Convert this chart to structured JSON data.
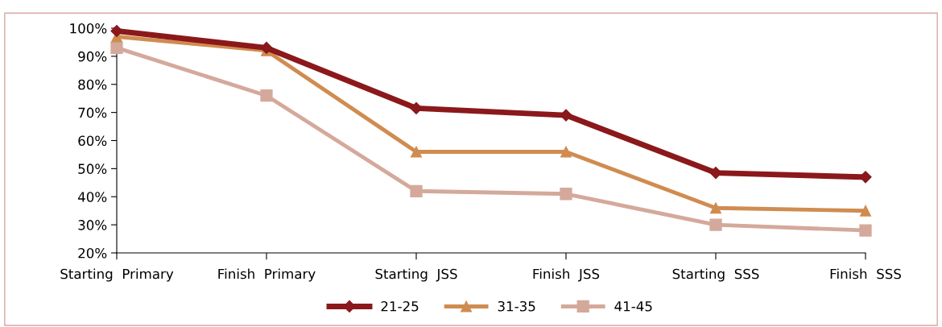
{
  "chart_data": {
    "type": "line",
    "categories": [
      "Starting  Primary",
      "Finish  Primary",
      "Starting  JSS",
      "Finish  JSS",
      "Starting  SSS",
      "Finish  SSS"
    ],
    "series": [
      {
        "name": "21-25",
        "color": "#8b181b",
        "marker": "diamond",
        "values": [
          99,
          93,
          71.5,
          69,
          48.5,
          47
        ]
      },
      {
        "name": "31-35",
        "color": "#d08c50",
        "marker": "triangle",
        "values": [
          97,
          92,
          56,
          56,
          36,
          35
        ]
      },
      {
        "name": "41-45",
        "color": "#d4a99b",
        "marker": "square",
        "values": [
          93,
          76,
          42,
          41,
          30,
          28
        ]
      }
    ],
    "ylim": [
      20,
      100
    ],
    "yticks": [
      {
        "value": 20,
        "label": "20%"
      },
      {
        "value": 30,
        "label": "30%"
      },
      {
        "value": 40,
        "label": "40%"
      },
      {
        "value": 50,
        "label": "50%"
      },
      {
        "value": 60,
        "label": "60%"
      },
      {
        "value": 70,
        "label": "70%"
      },
      {
        "value": 80,
        "label": "80%"
      },
      {
        "value": 90,
        "label": "90%"
      },
      {
        "value": 100,
        "label": "100%"
      }
    ],
    "grid": false,
    "legend": "bottom",
    "line_style": "solid"
  }
}
